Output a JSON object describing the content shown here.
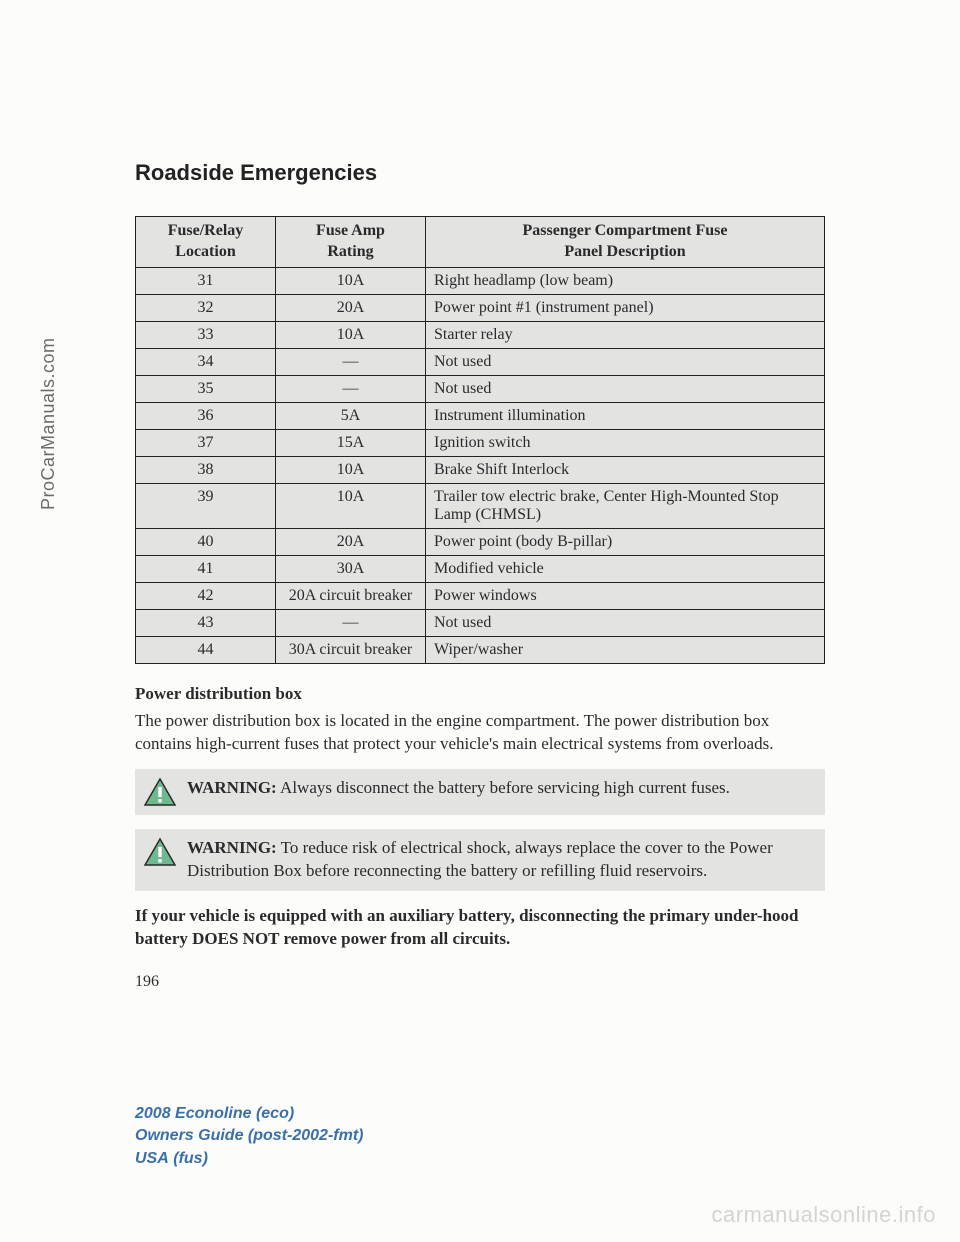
{
  "sidetext": "ProCarManuals.com",
  "section_title": "Roadside Emergencies",
  "table": {
    "headers": {
      "c1a": "Fuse/Relay",
      "c1b": "Location",
      "c2a": "Fuse Amp",
      "c2b": "Rating",
      "c3a": "Passenger Compartment Fuse",
      "c3b": "Panel Description"
    },
    "rows": [
      {
        "loc": "31",
        "amp": "10A",
        "desc": "Right headlamp (low beam)"
      },
      {
        "loc": "32",
        "amp": "20A",
        "desc": "Power point #1 (instrument panel)"
      },
      {
        "loc": "33",
        "amp": "10A",
        "desc": "Starter relay"
      },
      {
        "loc": "34",
        "amp": "—",
        "desc": "Not used"
      },
      {
        "loc": "35",
        "amp": "—",
        "desc": "Not used"
      },
      {
        "loc": "36",
        "amp": "5A",
        "desc": "Instrument illumination"
      },
      {
        "loc": "37",
        "amp": "15A",
        "desc": "Ignition switch"
      },
      {
        "loc": "38",
        "amp": "10A",
        "desc": "Brake Shift Interlock"
      },
      {
        "loc": "39",
        "amp": "10A",
        "desc": "Trailer tow electric brake, Center High-Mounted Stop Lamp (CHMSL)"
      },
      {
        "loc": "40",
        "amp": "20A",
        "desc": "Power point (body B-pillar)"
      },
      {
        "loc": "41",
        "amp": "30A",
        "desc": "Modified vehicle"
      },
      {
        "loc": "42",
        "amp": "20A circuit breaker",
        "desc": "Power windows"
      },
      {
        "loc": "43",
        "amp": "—",
        "desc": "Not used"
      },
      {
        "loc": "44",
        "amp": "30A circuit breaker",
        "desc": "Wiper/washer"
      }
    ]
  },
  "subhead": "Power distribution box",
  "pdb_para": "The power distribution box is located in the engine compartment. The power distribution box contains high-current fuses that protect your vehicle's main electrical systems from overloads.",
  "warn1_label": "WARNING:",
  "warn1_text": " Always disconnect the battery before servicing high current fuses.",
  "warn2_label": "WARNING:",
  "warn2_text": " To reduce risk of electrical shock, always replace the cover to the Power Distribution Box before reconnecting the battery or refilling fluid reservoirs.",
  "bold_para": "If your vehicle is equipped with an auxiliary battery, disconnecting the primary under-hood battery DOES NOT remove power from all circuits.",
  "page_number": "196",
  "footer": {
    "model": "2008 Econoline",
    "eco": "(eco)",
    "guide": "Owners Guide (post-2002-fmt)",
    "usa": "USA",
    "fus": "(fus)"
  },
  "watermark": "carmanualsonline.info",
  "icon": {
    "fill": "#6fb98f",
    "stroke": "#2a2a2a",
    "bang": "#ffffff"
  },
  "style": {
    "table_bg": "#e3e4e2",
    "body_bg": "#fcfdfb"
  }
}
